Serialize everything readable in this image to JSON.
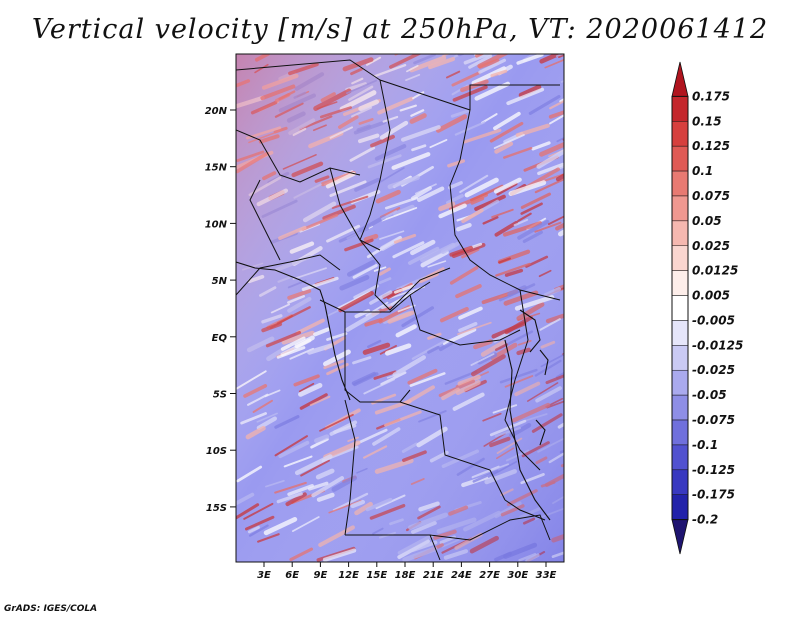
{
  "title": "Vertical velocity [m/s] at 250hPa, VT: 2020061412",
  "credit": "GrADS: IGES/COLA",
  "map": {
    "lat_ticks": [
      "20N",
      "15N",
      "10N",
      "5N",
      "EQ",
      "5S",
      "10S",
      "15S"
    ],
    "lon_ticks": [
      "3E",
      "6E",
      "9E",
      "12E",
      "15E",
      "18E",
      "21E",
      "24E",
      "27E",
      "30E",
      "33E"
    ]
  },
  "colorbar": {
    "levels": [
      "0.175",
      "0.15",
      "0.125",
      "0.1",
      "0.075",
      "0.05",
      "0.025",
      "0.0125",
      "0.005",
      "-0.005",
      "-0.0125",
      "-0.025",
      "-0.05",
      "-0.075",
      "-0.1",
      "-0.125",
      "-0.175",
      "-0.2"
    ],
    "colors": [
      "#b0141e",
      "#c4262c",
      "#d6403e",
      "#e05a55",
      "#e87a72",
      "#f09890",
      "#f6b8b0",
      "#fad6d0",
      "#fdeeea",
      "#ffffff",
      "#e6e6fa",
      "#cacaf4",
      "#aaaaee",
      "#8e8ee6",
      "#7070dc",
      "#5252d0",
      "#3838c0",
      "#2222aa",
      "#1e1470"
    ]
  }
}
